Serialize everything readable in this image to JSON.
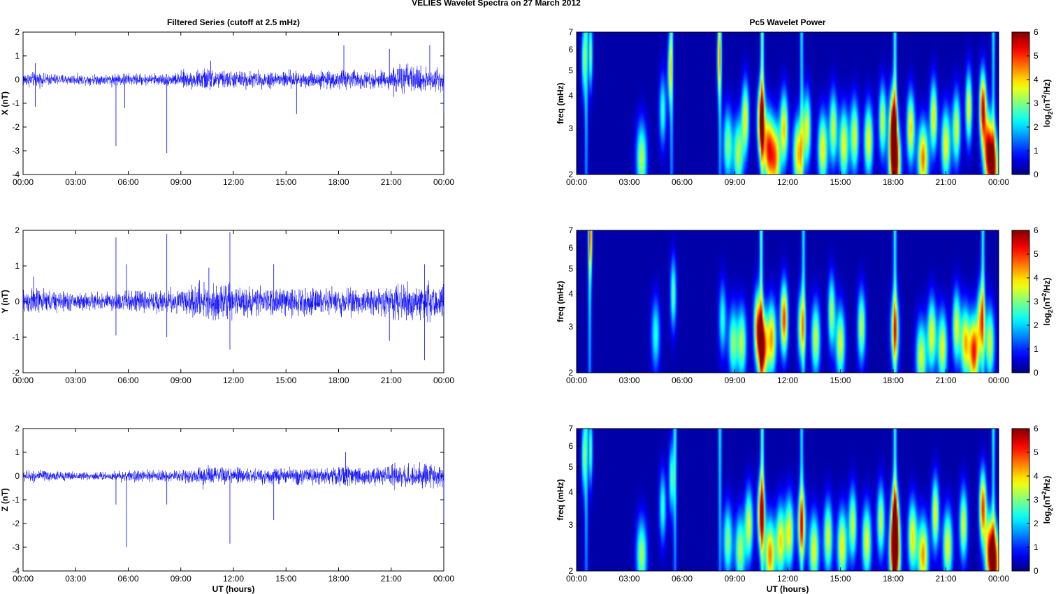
{
  "figure": {
    "title": "VELIES Wavelet Spectra on 27 March     2012",
    "left_column_title": "Filtered Series (cutoff at 2.5 mHz)",
    "right_column_title": "Pc5 Wavelet Power",
    "time_xlabel": "UT (hours)",
    "freq_ylabel": "freq (mHz)",
    "colorbar_label": "log2(nT2/Hz)",
    "line_color": "#0000ff",
    "colormap": "jet"
  },
  "chart_data": [
    {
      "type": "line",
      "title": "Filtered Series (cutoff at 2.5 mHz)",
      "ylabel": "X (nT)",
      "xlabel": "",
      "x_tick_labels": [
        "00:00",
        "03:00",
        "06:00",
        "09:00",
        "12:00",
        "15:00",
        "18:00",
        "21:00",
        "00:00"
      ],
      "xlim_hours": [
        0,
        24
      ],
      "ylim": [
        -4,
        2
      ],
      "y_ticks": [
        -4,
        -3,
        -2,
        -1,
        0,
        1,
        2
      ],
      "series": [
        {
          "noise_amplitude_by_hour": [
            0.25,
            0.2,
            0.18,
            0.17,
            0.18,
            0.22,
            0.2,
            0.2,
            0.22,
            0.3,
            0.38,
            0.3,
            0.3,
            0.28,
            0.3,
            0.3,
            0.28,
            0.3,
            0.35,
            0.3,
            0.3,
            0.5,
            0.42,
            0.45
          ],
          "spikes": [
            {
              "hour": 0.7,
              "value": 0.7
            },
            {
              "hour": 0.7,
              "value": -1.15
            },
            {
              "hour": 5.3,
              "value": -2.8
            },
            {
              "hour": 5.8,
              "value": -1.2
            },
            {
              "hour": 8.2,
              "value": -3.1
            },
            {
              "hour": 10.7,
              "value": 0.8
            },
            {
              "hour": 15.6,
              "value": -1.45
            },
            {
              "hour": 18.3,
              "value": 1.45
            },
            {
              "hour": 20.9,
              "value": 1.3
            },
            {
              "hour": 23.2,
              "value": 1.45
            },
            {
              "hour": 24.0,
              "value": -1.4
            }
          ]
        }
      ]
    },
    {
      "type": "line",
      "ylabel": "Y (nT)",
      "xlabel": "",
      "x_tick_labels": [
        "00:00",
        "03:00",
        "06:00",
        "09:00",
        "12:00",
        "15:00",
        "18:00",
        "21:00",
        "00:00"
      ],
      "xlim_hours": [
        0,
        24
      ],
      "ylim": [
        -2,
        2
      ],
      "y_ticks": [
        -2,
        -1,
        0,
        1,
        2
      ],
      "series": [
        {
          "noise_amplitude_by_hour": [
            0.3,
            0.25,
            0.22,
            0.2,
            0.2,
            0.25,
            0.25,
            0.25,
            0.28,
            0.32,
            0.42,
            0.38,
            0.32,
            0.3,
            0.32,
            0.3,
            0.3,
            0.3,
            0.3,
            0.28,
            0.3,
            0.42,
            0.4,
            0.45
          ],
          "spikes": [
            {
              "hour": 0.6,
              "value": 0.7
            },
            {
              "hour": 5.3,
              "value": 1.8
            },
            {
              "hour": 5.3,
              "value": -0.95
            },
            {
              "hour": 5.9,
              "value": 1.05
            },
            {
              "hour": 8.2,
              "value": 1.9
            },
            {
              "hour": 8.2,
              "value": -1.0
            },
            {
              "hour": 10.6,
              "value": 0.95
            },
            {
              "hour": 11.8,
              "value": 1.95
            },
            {
              "hour": 11.8,
              "value": -1.35
            },
            {
              "hour": 14.3,
              "value": 1.05
            },
            {
              "hour": 20.9,
              "value": -1.1
            },
            {
              "hour": 22.9,
              "value": -1.65
            },
            {
              "hour": 22.9,
              "value": 1.05
            }
          ]
        }
      ]
    },
    {
      "type": "line",
      "ylabel": "Z (nT)",
      "xlabel": "UT (hours)",
      "x_tick_labels": [
        "00:00",
        "03:00",
        "06:00",
        "09:00",
        "12:00",
        "15:00",
        "18:00",
        "21:00",
        "00:00"
      ],
      "xlim_hours": [
        0,
        24
      ],
      "ylim": [
        -4,
        2
      ],
      "y_ticks": [
        -4,
        -3,
        -2,
        -1,
        0,
        1,
        2
      ],
      "series": [
        {
          "noise_amplitude_by_hour": [
            0.2,
            0.18,
            0.15,
            0.15,
            0.15,
            0.18,
            0.18,
            0.2,
            0.2,
            0.25,
            0.35,
            0.3,
            0.28,
            0.25,
            0.28,
            0.28,
            0.28,
            0.3,
            0.35,
            0.3,
            0.3,
            0.42,
            0.38,
            0.4
          ],
          "spikes": [
            {
              "hour": 5.3,
              "value": -1.2
            },
            {
              "hour": 5.9,
              "value": -3.0
            },
            {
              "hour": 8.2,
              "value": -1.2
            },
            {
              "hour": 11.8,
              "value": -2.85
            },
            {
              "hour": 14.3,
              "value": -1.85
            },
            {
              "hour": 18.4,
              "value": 1.0
            },
            {
              "hour": 24.0,
              "value": -1.85
            }
          ]
        }
      ]
    },
    {
      "type": "heatmap",
      "title": "Pc5 Wavelet Power",
      "ylabel": "freq (mHz)",
      "xlabel": "",
      "x_tick_labels": [
        "00:00",
        "03:00",
        "06:00",
        "09:00",
        "12:00",
        "15:00",
        "18:00",
        "21:00",
        "00:00"
      ],
      "xlim_hours": [
        0,
        24
      ],
      "ylim_mhz": [
        2,
        7
      ],
      "y_scale": "log",
      "y_ticks": [
        2,
        3,
        4,
        5,
        6,
        7
      ],
      "color_range": [
        0,
        6
      ],
      "colorbar_ticks": [
        0,
        1,
        2,
        3,
        4,
        5,
        6
      ],
      "colorbar_label": "log2(nT2/Hz)",
      "blobs": [
        {
          "hour": 0.4,
          "freq": 5.5,
          "power": 2.5
        },
        {
          "hour": 0.8,
          "freq": 5.8,
          "power": 3.0
        },
        {
          "hour": 3.7,
          "freq": 2.3,
          "power": 3.3
        },
        {
          "hour": 4.9,
          "freq": 3.5,
          "power": 2.5
        },
        {
          "hour": 5.3,
          "freq": 5.0,
          "power": 2.7
        },
        {
          "hour": 8.1,
          "freq": 5.5,
          "power": 2.7
        },
        {
          "hour": 8.6,
          "freq": 2.6,
          "power": 3.0
        },
        {
          "hour": 9.2,
          "freq": 2.4,
          "power": 3.3
        },
        {
          "hour": 9.6,
          "freq": 3.3,
          "power": 3.7
        },
        {
          "hour": 10.5,
          "freq": 3.2,
          "power": 5.5
        },
        {
          "hour": 10.9,
          "freq": 2.5,
          "power": 4.6
        },
        {
          "hour": 11.3,
          "freq": 2.3,
          "power": 4.3
        },
        {
          "hour": 11.8,
          "freq": 3.0,
          "power": 4.0
        },
        {
          "hour": 12.6,
          "freq": 2.4,
          "power": 4.1
        },
        {
          "hour": 13.1,
          "freq": 3.0,
          "power": 3.6
        },
        {
          "hour": 14.0,
          "freq": 2.5,
          "power": 3.9
        },
        {
          "hour": 14.6,
          "freq": 3.0,
          "power": 3.5
        },
        {
          "hour": 15.2,
          "freq": 2.6,
          "power": 3.8
        },
        {
          "hour": 15.8,
          "freq": 2.8,
          "power": 3.6
        },
        {
          "hour": 16.6,
          "freq": 2.7,
          "power": 3.8
        },
        {
          "hour": 17.4,
          "freq": 3.2,
          "power": 3.5
        },
        {
          "hour": 18.1,
          "freq": 2.2,
          "power": 6.0
        },
        {
          "hour": 18.0,
          "freq": 3.1,
          "power": 5.3
        },
        {
          "hour": 19.0,
          "freq": 3.0,
          "power": 4.0
        },
        {
          "hour": 19.7,
          "freq": 2.3,
          "power": 4.6
        },
        {
          "hour": 20.3,
          "freq": 3.3,
          "power": 3.9
        },
        {
          "hour": 21.0,
          "freq": 2.6,
          "power": 3.8
        },
        {
          "hour": 21.6,
          "freq": 3.0,
          "power": 3.6
        },
        {
          "hour": 22.3,
          "freq": 3.6,
          "power": 3.8
        },
        {
          "hour": 23.1,
          "freq": 3.6,
          "power": 5.4
        },
        {
          "hour": 23.4,
          "freq": 2.5,
          "power": 4.8
        },
        {
          "hour": 23.7,
          "freq": 2.1,
          "power": 4.6
        }
      ],
      "ridges": [
        {
          "hour": 0.55,
          "power": 2.4
        },
        {
          "hour": 5.4,
          "power": 2.4
        },
        {
          "hour": 8.15,
          "power": 2.3
        },
        {
          "hour": 10.55,
          "power": 3.0
        },
        {
          "hour": 12.8,
          "power": 2.2
        },
        {
          "hour": 18.1,
          "power": 2.6
        },
        {
          "hour": 23.7,
          "power": 2.2
        }
      ]
    },
    {
      "type": "heatmap",
      "ylabel": "freq (mHz)",
      "xlabel": "",
      "x_tick_labels": [
        "00:00",
        "03:00",
        "06:00",
        "09:00",
        "12:00",
        "15:00",
        "18:00",
        "21:00",
        "00:00"
      ],
      "xlim_hours": [
        0,
        24
      ],
      "ylim_mhz": [
        2,
        7
      ],
      "y_scale": "log",
      "y_ticks": [
        2,
        3,
        4,
        5,
        6,
        7
      ],
      "color_range": [
        0,
        6
      ],
      "colorbar_ticks": [
        0,
        1,
        2,
        3,
        4,
        5,
        6
      ],
      "colorbar_label": "log2(nT2/Hz)",
      "blobs": [
        {
          "hour": 0.8,
          "freq": 6.6,
          "power": 3.0
        },
        {
          "hour": 4.5,
          "freq": 2.8,
          "power": 2.4
        },
        {
          "hour": 5.5,
          "freq": 4.0,
          "power": 2.8
        },
        {
          "hour": 8.3,
          "freq": 3.2,
          "power": 2.4
        },
        {
          "hour": 8.9,
          "freq": 2.6,
          "power": 3.0
        },
        {
          "hour": 9.4,
          "freq": 2.6,
          "power": 3.3
        },
        {
          "hour": 10.3,
          "freq": 3.0,
          "power": 4.3
        },
        {
          "hour": 10.6,
          "freq": 2.5,
          "power": 5.5
        },
        {
          "hour": 11.1,
          "freq": 2.7,
          "power": 4.2
        },
        {
          "hour": 11.8,
          "freq": 3.2,
          "power": 5.0
        },
        {
          "hour": 12.8,
          "freq": 3.0,
          "power": 3.6
        },
        {
          "hour": 13.6,
          "freq": 2.7,
          "power": 3.5
        },
        {
          "hour": 14.5,
          "freq": 3.4,
          "power": 3.3
        },
        {
          "hour": 15.0,
          "freq": 2.6,
          "power": 3.6
        },
        {
          "hour": 16.2,
          "freq": 3.0,
          "power": 3.4
        },
        {
          "hour": 18.1,
          "freq": 2.9,
          "power": 4.0
        },
        {
          "hour": 19.6,
          "freq": 2.3,
          "power": 3.6
        },
        {
          "hour": 20.2,
          "freq": 2.8,
          "power": 3.8
        },
        {
          "hour": 20.8,
          "freq": 2.5,
          "power": 3.7
        },
        {
          "hour": 21.6,
          "freq": 3.0,
          "power": 3.6
        },
        {
          "hour": 22.1,
          "freq": 2.6,
          "power": 4.0
        },
        {
          "hour": 22.6,
          "freq": 2.4,
          "power": 5.2
        },
        {
          "hour": 23.0,
          "freq": 3.2,
          "power": 3.9
        },
        {
          "hour": 23.5,
          "freq": 2.6,
          "power": 3.5
        }
      ],
      "ridges": [
        {
          "hour": 0.75,
          "power": 2.5
        },
        {
          "hour": 10.5,
          "power": 2.8
        },
        {
          "hour": 12.9,
          "power": 2.2
        },
        {
          "hour": 18.1,
          "power": 2.4
        },
        {
          "hour": 23.1,
          "power": 2.4
        }
      ]
    },
    {
      "type": "heatmap",
      "ylabel": "freq (mHz)",
      "xlabel": "UT (hours)",
      "x_tick_labels": [
        "00:00",
        "03:00",
        "06:00",
        "09:00",
        "12:00",
        "15:00",
        "18:00",
        "21:00",
        "00:00"
      ],
      "xlim_hours": [
        0,
        24
      ],
      "ylim_mhz": [
        2,
        7
      ],
      "y_scale": "log",
      "y_ticks": [
        2,
        3,
        4,
        5,
        6,
        7
      ],
      "color_range": [
        0,
        6
      ],
      "colorbar_ticks": [
        0,
        1,
        2,
        3,
        4,
        5,
        6
      ],
      "colorbar_label": "log2(nT2/Hz)",
      "blobs": [
        {
          "hour": 0.4,
          "freq": 5.5,
          "power": 2.5
        },
        {
          "hour": 0.8,
          "freq": 5.8,
          "power": 2.8
        },
        {
          "hour": 3.7,
          "freq": 2.3,
          "power": 3.2
        },
        {
          "hour": 4.9,
          "freq": 3.5,
          "power": 2.5
        },
        {
          "hour": 5.4,
          "freq": 4.5,
          "power": 2.6
        },
        {
          "hour": 8.6,
          "freq": 2.6,
          "power": 3.0
        },
        {
          "hour": 9.3,
          "freq": 2.4,
          "power": 3.3
        },
        {
          "hour": 9.8,
          "freq": 3.0,
          "power": 3.6
        },
        {
          "hour": 10.5,
          "freq": 3.3,
          "power": 5.0
        },
        {
          "hour": 11.0,
          "freq": 2.3,
          "power": 4.5
        },
        {
          "hour": 11.6,
          "freq": 2.6,
          "power": 3.9
        },
        {
          "hour": 12.1,
          "freq": 2.8,
          "power": 3.8
        },
        {
          "hour": 12.8,
          "freq": 3.0,
          "power": 4.2
        },
        {
          "hour": 13.5,
          "freq": 2.4,
          "power": 3.7
        },
        {
          "hour": 14.3,
          "freq": 2.7,
          "power": 3.6
        },
        {
          "hour": 15.1,
          "freq": 2.5,
          "power": 3.9
        },
        {
          "hour": 15.7,
          "freq": 3.0,
          "power": 3.5
        },
        {
          "hour": 16.5,
          "freq": 2.6,
          "power": 3.7
        },
        {
          "hour": 17.3,
          "freq": 3.1,
          "power": 3.4
        },
        {
          "hour": 18.1,
          "freq": 2.3,
          "power": 5.8
        },
        {
          "hour": 18.1,
          "freq": 3.1,
          "power": 5.0
        },
        {
          "hour": 19.1,
          "freq": 2.7,
          "power": 3.9
        },
        {
          "hour": 19.7,
          "freq": 2.3,
          "power": 4.4
        },
        {
          "hour": 20.4,
          "freq": 3.3,
          "power": 3.8
        },
        {
          "hour": 21.1,
          "freq": 2.5,
          "power": 3.7
        },
        {
          "hour": 22.0,
          "freq": 3.0,
          "power": 3.6
        },
        {
          "hour": 23.1,
          "freq": 3.5,
          "power": 5.0
        },
        {
          "hour": 23.5,
          "freq": 2.4,
          "power": 4.6
        },
        {
          "hour": 23.8,
          "freq": 2.1,
          "power": 4.4
        }
      ],
      "ridges": [
        {
          "hour": 0.55,
          "power": 2.3
        },
        {
          "hour": 5.6,
          "power": 2.3
        },
        {
          "hour": 8.15,
          "power": 2.2
        },
        {
          "hour": 10.55,
          "power": 2.8
        },
        {
          "hour": 12.8,
          "power": 2.2
        },
        {
          "hour": 18.1,
          "power": 2.5
        },
        {
          "hour": 23.7,
          "power": 2.3
        }
      ]
    }
  ]
}
